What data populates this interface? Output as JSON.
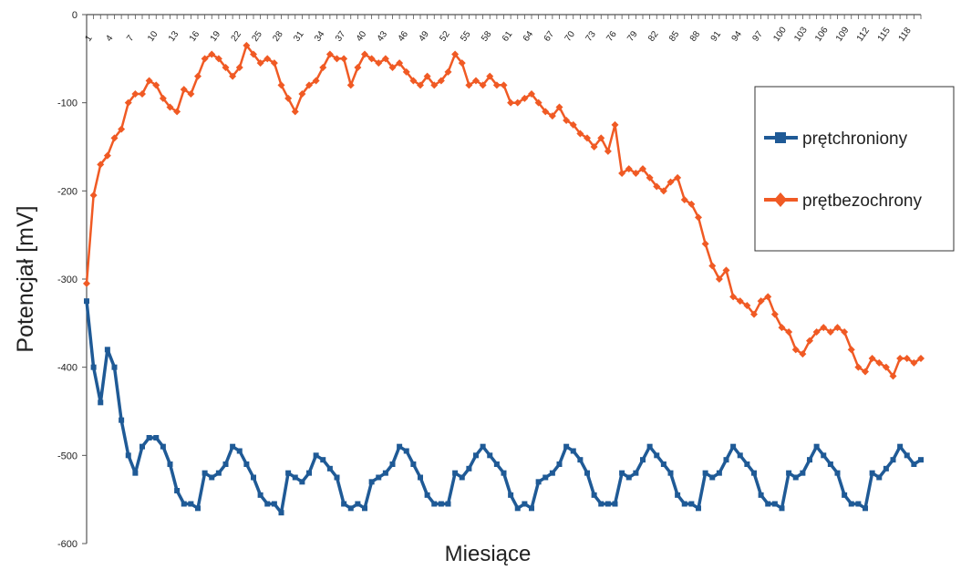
{
  "chart_data": {
    "type": "line",
    "xlabel": "Miesiące",
    "ylabel": "Potencjał [mV]",
    "ylim": [
      -600,
      0
    ],
    "yticks": [
      "0",
      "-100",
      "-200",
      "-300",
      "-400",
      "-500",
      "-600"
    ],
    "xticks": [
      "1",
      "4",
      "7",
      "10",
      "13",
      "16",
      "19",
      "22",
      "25",
      "28",
      "31",
      "34",
      "37",
      "40",
      "43",
      "46",
      "49",
      "52",
      "55",
      "58",
      "61",
      "64",
      "67",
      "70",
      "73",
      "76",
      "79",
      "82",
      "85",
      "88",
      "91",
      "94",
      "97",
      "100",
      "103",
      "106",
      "109",
      "112",
      "115",
      "118"
    ],
    "legend_position": "right",
    "series": [
      {
        "name": "prętchroniony",
        "color": "#1f5a96",
        "marker": "square",
        "x": [
          1,
          2,
          3,
          4,
          5,
          6,
          7,
          8,
          9,
          10,
          11,
          12,
          13,
          14,
          15,
          16,
          17,
          18,
          19,
          20,
          21,
          22,
          23,
          24,
          25,
          26,
          27,
          28,
          29,
          30,
          31,
          32,
          33,
          34,
          35,
          36,
          37,
          38,
          39,
          40,
          41,
          42,
          43,
          44,
          45,
          46,
          47,
          48,
          49,
          50,
          51,
          52,
          53,
          54,
          55,
          56,
          57,
          58,
          59,
          60,
          61,
          62,
          63,
          64,
          65,
          66,
          67,
          68,
          69,
          70,
          71,
          72,
          73,
          74,
          75,
          76,
          77,
          78,
          79,
          80,
          81,
          82,
          83,
          84,
          85,
          86,
          87,
          88,
          89,
          90,
          91,
          92,
          93,
          94,
          95,
          96,
          97,
          98,
          99,
          100,
          101,
          102,
          103,
          104,
          105,
          106,
          107,
          108,
          109,
          110,
          111,
          112,
          113,
          114,
          115,
          116,
          117,
          118,
          119,
          120,
          121
        ],
        "values": [
          -325,
          -400,
          -440,
          -380,
          -400,
          -460,
          -500,
          -520,
          -490,
          -480,
          -480,
          -490,
          -510,
          -540,
          -555,
          -555,
          -560,
          -520,
          -525,
          -520,
          -510,
          -490,
          -495,
          -510,
          -525,
          -545,
          -555,
          -555,
          -565,
          -520,
          -525,
          -530,
          -520,
          -500,
          -505,
          -515,
          -525,
          -555,
          -560,
          -555,
          -560,
          -530,
          -525,
          -520,
          -510,
          -490,
          -495,
          -510,
          -525,
          -545,
          -555,
          -555,
          -555,
          -520,
          -525,
          -515,
          -500,
          -490,
          -500,
          -510,
          -520,
          -545,
          -560,
          -555,
          -560,
          -530,
          -525,
          -520,
          -510,
          -490,
          -495,
          -505,
          -520,
          -545,
          -555,
          -555,
          -555,
          -520,
          -525,
          -520,
          -505,
          -490,
          -500,
          -510,
          -520,
          -545,
          -555,
          -555,
          -560,
          -520,
          -525,
          -520,
          -505,
          -490,
          -500,
          -510,
          -520,
          -545,
          -555,
          -555,
          -560,
          -520,
          -525,
          -520,
          -505,
          -490,
          -500,
          -510,
          -520,
          -545,
          -555,
          -555,
          -560,
          -520,
          -525,
          -515,
          -505,
          -490,
          -500,
          -510,
          -505
        ]
      },
      {
        "name": "prętbezochrony",
        "color": "#f05a24",
        "marker": "diamond",
        "x": [
          1,
          2,
          3,
          4,
          5,
          6,
          7,
          8,
          9,
          10,
          11,
          12,
          13,
          14,
          15,
          16,
          17,
          18,
          19,
          20,
          21,
          22,
          23,
          24,
          25,
          26,
          27,
          28,
          29,
          30,
          31,
          32,
          33,
          34,
          35,
          36,
          37,
          38,
          39,
          40,
          41,
          42,
          43,
          44,
          45,
          46,
          47,
          48,
          49,
          50,
          51,
          52,
          53,
          54,
          55,
          56,
          57,
          58,
          59,
          60,
          61,
          62,
          63,
          64,
          65,
          66,
          67,
          68,
          69,
          70,
          71,
          72,
          73,
          74,
          75,
          76,
          77,
          78,
          79,
          80,
          81,
          82,
          83,
          84,
          85,
          86,
          87,
          88,
          89,
          90,
          91,
          92,
          93,
          94,
          95,
          96,
          97,
          98,
          99,
          100,
          101,
          102,
          103,
          104,
          105,
          106,
          107,
          108,
          109,
          110,
          111,
          112,
          113,
          114,
          115,
          116,
          117,
          118,
          119,
          120,
          121
        ],
        "values": [
          -305,
          -205,
          -170,
          -160,
          -140,
          -130,
          -100,
          -90,
          -90,
          -75,
          -80,
          -95,
          -105,
          -110,
          -85,
          -90,
          -70,
          -50,
          -45,
          -50,
          -60,
          -70,
          -60,
          -35,
          -45,
          -55,
          -50,
          -55,
          -80,
          -95,
          -110,
          -90,
          -80,
          -75,
          -60,
          -45,
          -50,
          -50,
          -80,
          -60,
          -45,
          -50,
          -55,
          -50,
          -60,
          -55,
          -65,
          -75,
          -80,
          -70,
          -80,
          -75,
          -65,
          -45,
          -55,
          -80,
          -75,
          -80,
          -70,
          -80,
          -80,
          -100,
          -100,
          -95,
          -90,
          -100,
          -110,
          -115,
          -105,
          -120,
          -125,
          -135,
          -140,
          -150,
          -140,
          -155,
          -125,
          -180,
          -175,
          -180,
          -175,
          -185,
          -195,
          -200,
          -190,
          -185,
          -210,
          -215,
          -230,
          -260,
          -285,
          -300,
          -290,
          -320,
          -325,
          -330,
          -340,
          -325,
          -320,
          -340,
          -355,
          -360,
          -380,
          -385,
          -370,
          -360,
          -355,
          -360,
          -355,
          -360,
          -380,
          -400,
          -405,
          -390,
          -395,
          -400,
          -410,
          -390,
          -390,
          -395,
          -390
        ]
      }
    ]
  }
}
